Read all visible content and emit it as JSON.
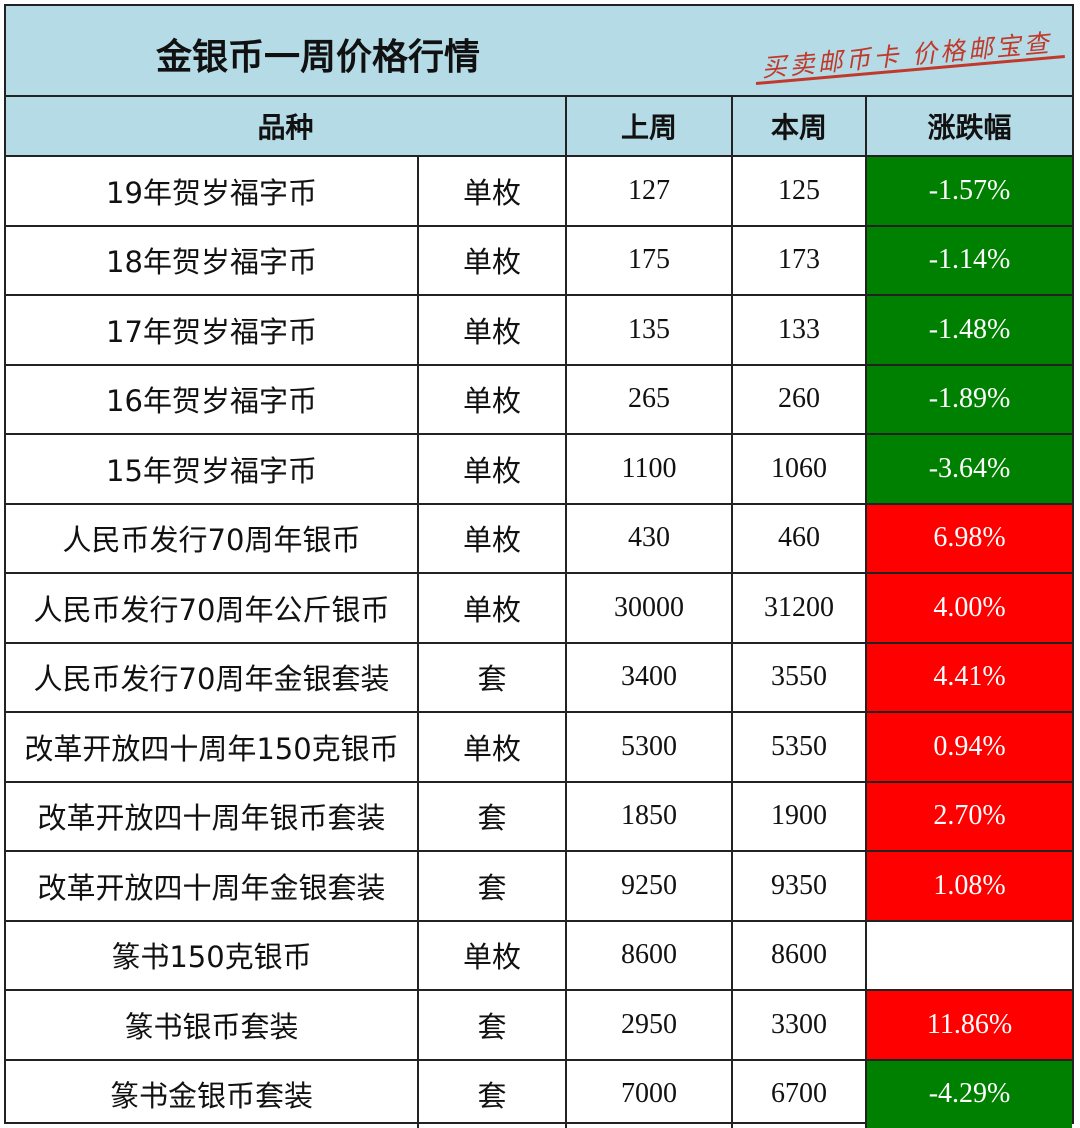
{
  "title": "金银币一周价格行情",
  "slogan": "买卖邮币卡 价格邮宝查",
  "colors": {
    "header_bg": "#b4dbe6",
    "up": "#ff0000",
    "down": "#008000"
  },
  "headers": {
    "variety": "品种",
    "last_week": "上周",
    "this_week": "本周",
    "change": "涨跌幅"
  },
  "rows": [
    {
      "name": "19年贺岁福字币",
      "unit": "单枚",
      "last": "127",
      "current": "125",
      "change": "-1.57%",
      "dir": "down"
    },
    {
      "name": "18年贺岁福字币",
      "unit": "单枚",
      "last": "175",
      "current": "173",
      "change": "-1.14%",
      "dir": "down"
    },
    {
      "name": "17年贺岁福字币",
      "unit": "单枚",
      "last": "135",
      "current": "133",
      "change": "-1.48%",
      "dir": "down"
    },
    {
      "name": "16年贺岁福字币",
      "unit": "单枚",
      "last": "265",
      "current": "260",
      "change": "-1.89%",
      "dir": "down"
    },
    {
      "name": "15年贺岁福字币",
      "unit": "单枚",
      "last": "1100",
      "current": "1060",
      "change": "-3.64%",
      "dir": "down"
    },
    {
      "name": "人民币发行70周年银币",
      "unit": "单枚",
      "last": "430",
      "current": "460",
      "change": "6.98%",
      "dir": "up"
    },
    {
      "name": "人民币发行70周年公斤银币",
      "unit": "单枚",
      "last": "30000",
      "current": "31200",
      "change": "4.00%",
      "dir": "up"
    },
    {
      "name": "人民币发行70周年金银套装",
      "unit": "套",
      "last": "3400",
      "current": "3550",
      "change": "4.41%",
      "dir": "up"
    },
    {
      "name": "改革开放四十周年150克银币",
      "unit": "单枚",
      "last": "5300",
      "current": "5350",
      "change": "0.94%",
      "dir": "up"
    },
    {
      "name": "改革开放四十周年银币套装",
      "unit": "套",
      "last": "1850",
      "current": "1900",
      "change": "2.70%",
      "dir": "up"
    },
    {
      "name": "改革开放四十周年金银套装",
      "unit": "套",
      "last": "9250",
      "current": "9350",
      "change": "1.08%",
      "dir": "up"
    },
    {
      "name": "篆书150克银币",
      "unit": "单枚",
      "last": "8600",
      "current": "8600",
      "change": "",
      "dir": "flat"
    },
    {
      "name": "篆书银币套装",
      "unit": "套",
      "last": "2950",
      "current": "3300",
      "change": "11.86%",
      "dir": "up"
    },
    {
      "name": "篆书金银币套装",
      "unit": "套",
      "last": "7000",
      "current": "6700",
      "change": "-4.29%",
      "dir": "down"
    }
  ]
}
